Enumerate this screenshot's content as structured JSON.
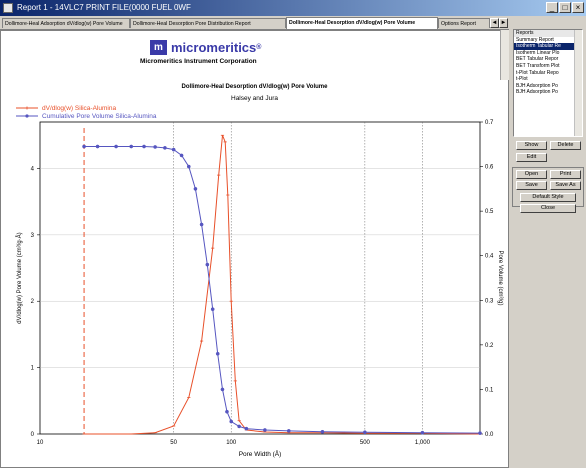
{
  "window": {
    "title": "Report 1 - 14VLC7 PRINT FILE(0000 FUEL 0WF",
    "minimize": "_",
    "maximize": "□",
    "close": "×"
  },
  "tabs": [
    {
      "label": "Dollimore-Heal Adsorption dV/dlog(w) Pore Volume",
      "active": false
    },
    {
      "label": "Dollimore-Heal Desorption Pore Distribution Report",
      "active": false
    },
    {
      "label": "Dollimore-Heal Desorption dV/dlog(w) Pore Volume",
      "active": true
    },
    {
      "label": "Options Report",
      "active": false
    }
  ],
  "tab_scroll": {
    "left": "◄",
    "right": "►"
  },
  "report": {
    "logo_mark": "m",
    "brand": "micromeritics",
    "brand_mark": "®",
    "corporation": "Micromeritics Instrument Corporation",
    "title": "Dollimore-Heal Desorption dV/dlog(w) Pore Volume",
    "subtitle": "Halsey and Jura"
  },
  "chart_data": {
    "type": "line",
    "title": "Dollimore-Heal Desorption dV/dlog(w) Pore Volume",
    "subtitle": "Halsey and Jura",
    "xlabel": "Pore Width (Å)",
    "ylabel": "dV/dlog(w) Pore Volume (cm³/g·Å)",
    "y2label": "Pore Volume (cm³/g)",
    "x_scale": "log",
    "xlim": [
      10,
      2000
    ],
    "ylim": [
      0,
      4.7
    ],
    "y2lim": [
      0,
      0.7
    ],
    "x_ticks": [
      "10",
      "50",
      "100",
      "500",
      "1,000"
    ],
    "x_tick_values": [
      10,
      50,
      100,
      500,
      1000
    ],
    "y_ticks": [
      "0",
      "1",
      "2",
      "3",
      "4"
    ],
    "y_tick_values": [
      0,
      1,
      2,
      3,
      4
    ],
    "y2_ticks": [
      "0.0",
      "0.1",
      "0.2",
      "0.3",
      "0.4",
      "0.5",
      "0.6",
      "0.7"
    ],
    "y2_tick_values": [
      0,
      0.1,
      0.2,
      0.3,
      0.4,
      0.5,
      0.6,
      0.7
    ],
    "grid": true,
    "legend_position": "top-left",
    "vline_x": 17,
    "series": [
      {
        "name": "dV/dlog(w) Silica-Alumina",
        "axis": "left",
        "color": "#e8502a",
        "x": [
          17,
          30,
          40,
          50,
          60,
          70,
          80,
          86,
          90,
          93,
          96,
          100,
          105,
          110,
          120,
          150,
          200,
          300,
          500,
          1000,
          2000
        ],
        "y": [
          0,
          0,
          0.02,
          0.12,
          0.55,
          1.4,
          2.8,
          3.9,
          4.5,
          4.4,
          3.6,
          2.0,
          0.8,
          0.2,
          0.06,
          0.03,
          0.02,
          0.02,
          0.01,
          0.01,
          0.0
        ]
      },
      {
        "name": "Cumulative Pore Volume Silica-Alumina",
        "axis": "right",
        "color": "#5656c0",
        "x": [
          17,
          20,
          25,
          30,
          35,
          40,
          45,
          50,
          55,
          60,
          65,
          70,
          75,
          80,
          85,
          90,
          95,
          100,
          110,
          120,
          150,
          200,
          300,
          500,
          1000,
          2000
        ],
        "y": [
          0.645,
          0.645,
          0.645,
          0.645,
          0.645,
          0.644,
          0.642,
          0.638,
          0.625,
          0.6,
          0.55,
          0.47,
          0.38,
          0.28,
          0.18,
          0.1,
          0.05,
          0.028,
          0.017,
          0.012,
          0.009,
          0.007,
          0.005,
          0.004,
          0.003,
          0.002
        ]
      }
    ]
  },
  "sidebar": {
    "list_header": "Reports",
    "reports": [
      "Summary Report",
      "Isotherm Tabular Re",
      "Isotherm Linear Plo",
      "BET Tabular Repor",
      "BET Transform Plot",
      "t-Plot Tabular Repo",
      "t-Plot",
      "BJH Adsorption Po",
      "BJH Adsorption Po"
    ],
    "buttons": {
      "show": "Show",
      "delete": "Delete",
      "edit": "Edit",
      "open": "Open",
      "print": "Print",
      "save": "Save",
      "save_as": "Save As",
      "default_style": "Default Style",
      "close": "Close"
    }
  },
  "colors": {
    "title_bar": "#0a246a",
    "brand": "#3a3aa8",
    "series_red": "#e8502a",
    "series_blue": "#5656c0"
  }
}
